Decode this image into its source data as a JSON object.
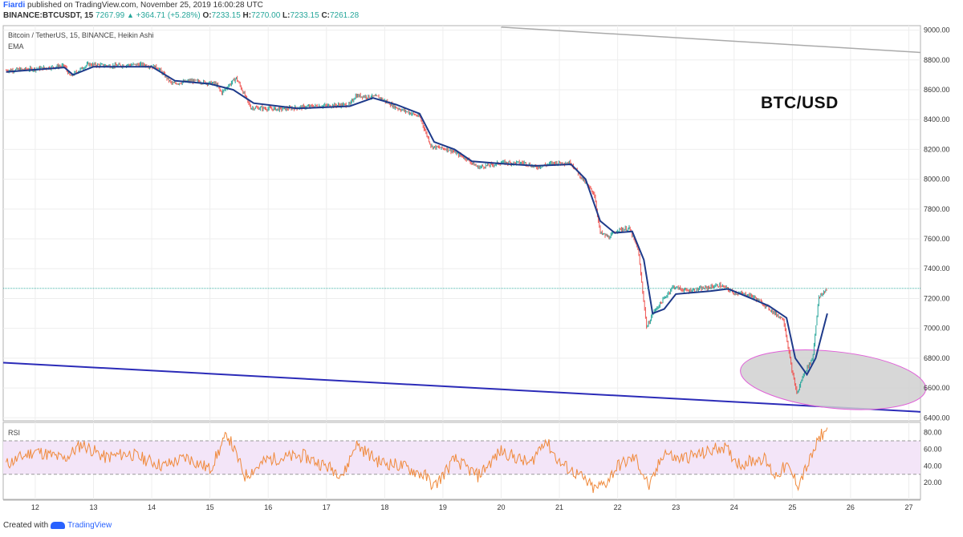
{
  "header": {
    "author": "Fiardi",
    "published": "published on TradingView.com, November 25, 2019 16:00:28 UTC",
    "symbol": "BINANCE:BTCUSDT, 15",
    "last": "7267.99",
    "arrow": "▲",
    "change": "+364.71 (+5.28%)",
    "o_label": "O:",
    "o_value": "7233.15",
    "h_label": "H:",
    "h_value": "7270.00",
    "l_label": "L:",
    "l_value": "7233.15",
    "c_label": "C:",
    "c_value": "7261.28"
  },
  "footer": {
    "created_with": "Created with",
    "brand": "TradingView"
  },
  "colors": {
    "up": "#26a69a",
    "down": "#ef5350",
    "ema": "#1e3a8a",
    "rsi": "#f08a3c",
    "rsi_band": "#f3e5f8",
    "ellipse_fill": "#d0d0d0",
    "ellipse_stroke": "#e060d8",
    "trend_low": "#2b2bb8",
    "trend_high": "#aaaaaa",
    "last_line": "#26a69a"
  },
  "chart_data": [
    {
      "type": "line",
      "title": "Bitcoin / TetherUS, 15, BINANCE, Heikin Ashi",
      "indicator": "EMA",
      "annotation": "BTC/USD",
      "x_tick_labels": [
        "12",
        "13",
        "14",
        "15",
        "16",
        "17",
        "18",
        "19",
        "20",
        "21",
        "22",
        "23",
        "24",
        "25",
        "26",
        "27"
      ],
      "x_range_days": [
        11.45,
        27.2
      ],
      "y_ticks": [
        6400,
        6600,
        6800,
        7000,
        7200,
        7400,
        7600,
        7800,
        8000,
        8200,
        8400,
        8600,
        8800,
        9000
      ],
      "y_tick_labels": [
        "6400.00",
        "6600.00",
        "6800.00",
        "7000.00",
        "7200.00",
        "7400.00",
        "7600.00",
        "7800.00",
        "8000.00",
        "8200.00",
        "8400.00",
        "8600.00",
        "8800.00",
        "9000.00"
      ],
      "ylim": [
        6380,
        9030
      ],
      "last_price": 7267.99,
      "price_path": [
        [
          11.5,
          8730
        ],
        [
          12.0,
          8740
        ],
        [
          12.5,
          8760
        ],
        [
          12.6,
          8690
        ],
        [
          12.9,
          8770
        ],
        [
          13.3,
          8760
        ],
        [
          13.8,
          8770
        ],
        [
          14.1,
          8750
        ],
        [
          14.35,
          8640
        ],
        [
          14.7,
          8660
        ],
        [
          15.1,
          8640
        ],
        [
          15.2,
          8580
        ],
        [
          15.45,
          8680
        ],
        [
          15.7,
          8480
        ],
        [
          16.2,
          8470
        ],
        [
          16.8,
          8490
        ],
        [
          17.4,
          8500
        ],
        [
          17.5,
          8560
        ],
        [
          17.9,
          8550
        ],
        [
          18.2,
          8480
        ],
        [
          18.6,
          8420
        ],
        [
          18.8,
          8220
        ],
        [
          19.1,
          8200
        ],
        [
          19.4,
          8140
        ],
        [
          19.6,
          8080
        ],
        [
          20.0,
          8110
        ],
        [
          20.4,
          8110
        ],
        [
          20.6,
          8080
        ],
        [
          20.9,
          8110
        ],
        [
          21.2,
          8110
        ],
        [
          21.4,
          8000
        ],
        [
          21.6,
          7900
        ],
        [
          21.7,
          7640
        ],
        [
          21.85,
          7610
        ],
        [
          22.0,
          7660
        ],
        [
          22.2,
          7670
        ],
        [
          22.35,
          7530
        ],
        [
          22.5,
          7000
        ],
        [
          22.6,
          7100
        ],
        [
          22.8,
          7200
        ],
        [
          22.95,
          7280
        ],
        [
          23.2,
          7250
        ],
        [
          23.5,
          7270
        ],
        [
          23.75,
          7290
        ],
        [
          24.0,
          7240
        ],
        [
          24.3,
          7220
        ],
        [
          24.55,
          7150
        ],
        [
          24.7,
          7100
        ],
        [
          24.85,
          7060
        ],
        [
          25.0,
          6700
        ],
        [
          25.08,
          6560
        ],
        [
          25.2,
          6700
        ],
        [
          25.35,
          6800
        ],
        [
          25.45,
          7200
        ],
        [
          25.6,
          7270
        ]
      ],
      "ema_path": [
        [
          11.5,
          8720
        ],
        [
          12.5,
          8750
        ],
        [
          12.65,
          8700
        ],
        [
          13.0,
          8755
        ],
        [
          14.0,
          8755
        ],
        [
          14.4,
          8660
        ],
        [
          15.0,
          8640
        ],
        [
          15.4,
          8600
        ],
        [
          15.75,
          8510
        ],
        [
          16.5,
          8475
        ],
        [
          17.4,
          8490
        ],
        [
          17.8,
          8545
        ],
        [
          18.2,
          8500
        ],
        [
          18.6,
          8440
        ],
        [
          18.85,
          8250
        ],
        [
          19.2,
          8200
        ],
        [
          19.5,
          8120
        ],
        [
          20.0,
          8105
        ],
        [
          20.6,
          8090
        ],
        [
          21.2,
          8100
        ],
        [
          21.45,
          8000
        ],
        [
          21.7,
          7720
        ],
        [
          21.95,
          7640
        ],
        [
          22.25,
          7650
        ],
        [
          22.45,
          7460
        ],
        [
          22.6,
          7100
        ],
        [
          22.8,
          7130
        ],
        [
          23.0,
          7230
        ],
        [
          23.6,
          7250
        ],
        [
          23.9,
          7265
        ],
        [
          24.3,
          7200
        ],
        [
          24.6,
          7150
        ],
        [
          24.9,
          7070
        ],
        [
          25.05,
          6800
        ],
        [
          25.25,
          6690
        ],
        [
          25.4,
          6800
        ],
        [
          25.6,
          7100
        ]
      ],
      "trend_lines": [
        {
          "name": "support",
          "points": [
            [
              11.45,
              6770
            ],
            [
              27.2,
              6440
            ]
          ]
        },
        {
          "name": "resistance",
          "points": [
            [
              20.0,
              9020
            ],
            [
              27.2,
              8850
            ]
          ]
        }
      ],
      "highlight_ellipse": {
        "center": [
          25.7,
          6655
        ],
        "rx_days": 1.6,
        "ry_price": 190
      }
    },
    {
      "type": "line",
      "title": "RSI",
      "y_ticks": [
        20,
        40,
        60,
        80
      ],
      "y_tick_labels": [
        "20.00",
        "40.00",
        "60.00",
        "80.00"
      ],
      "ylim": [
        0,
        92
      ],
      "band": [
        30,
        70
      ],
      "rsi_path": [
        [
          11.5,
          42
        ],
        [
          12.0,
          58
        ],
        [
          12.5,
          48
        ],
        [
          12.8,
          66
        ],
        [
          13.2,
          50
        ],
        [
          13.6,
          55
        ],
        [
          14.2,
          40
        ],
        [
          14.6,
          50
        ],
        [
          15.0,
          36
        ],
        [
          15.3,
          78
        ],
        [
          15.6,
          28
        ],
        [
          16.0,
          48
        ],
        [
          16.6,
          52
        ],
        [
          17.3,
          30
        ],
        [
          17.5,
          66
        ],
        [
          17.9,
          45
        ],
        [
          18.3,
          40
        ],
        [
          18.7,
          28
        ],
        [
          18.85,
          15
        ],
        [
          19.2,
          48
        ],
        [
          19.6,
          28
        ],
        [
          20.0,
          58
        ],
        [
          20.5,
          42
        ],
        [
          20.75,
          72
        ],
        [
          21.0,
          44
        ],
        [
          21.35,
          28
        ],
        [
          21.6,
          12
        ],
        [
          21.8,
          20
        ],
        [
          22.0,
          40
        ],
        [
          22.3,
          50
        ],
        [
          22.55,
          14
        ],
        [
          22.8,
          58
        ],
        [
          23.0,
          48
        ],
        [
          23.5,
          55
        ],
        [
          23.8,
          64
        ],
        [
          24.1,
          42
        ],
        [
          24.5,
          50
        ],
        [
          24.7,
          28
        ],
        [
          24.9,
          40
        ],
        [
          25.1,
          18
        ],
        [
          25.3,
          46
        ],
        [
          25.5,
          78
        ],
        [
          25.6,
          82
        ]
      ]
    }
  ]
}
